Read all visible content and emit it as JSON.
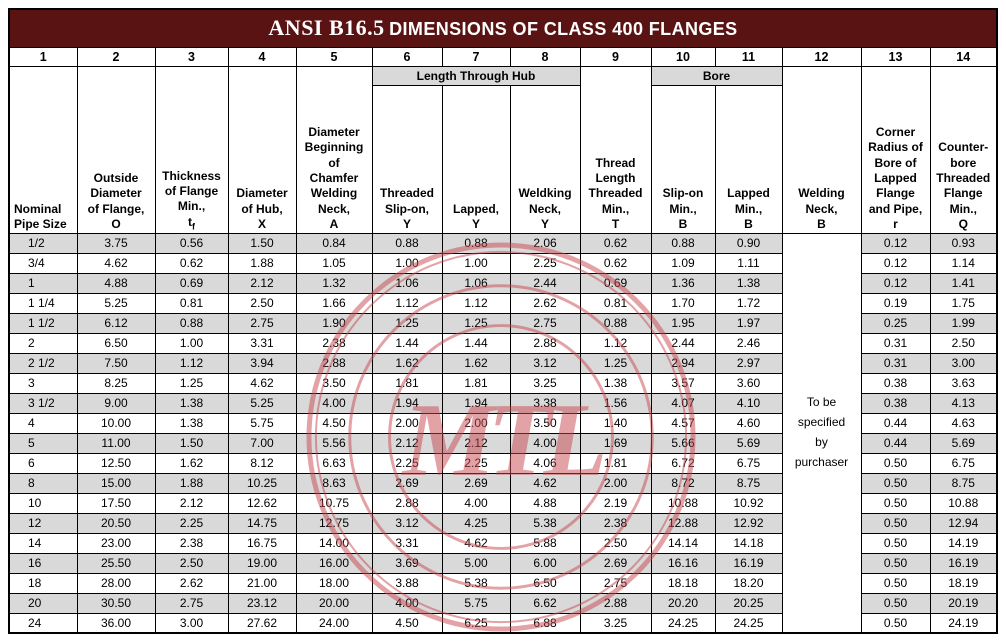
{
  "title": {
    "prefix": "ANSI B16.5",
    "rest": "DIMENSIONS OF CLASS 400 FLANGES"
  },
  "watermark": {
    "monogram": "MTL",
    "color": "#c84a50"
  },
  "table": {
    "column_numbers": [
      "1",
      "2",
      "3",
      "4",
      "5",
      "6",
      "7",
      "8",
      "9",
      "10",
      "11",
      "12",
      "13",
      "14"
    ],
    "group_headers": {
      "length_through_hub": "Length Through Hub",
      "bore": "Bore"
    },
    "headers": [
      "Nominal\nPipe Size",
      "Outside\nDiameter\nof Flange,\nO",
      "Thickness\nof Flange\nMin.,\nt_f",
      "Diameter\nof Hub,\nX",
      "Diameter\nBeginning\nof\nChamfer\nWelding\nNeck,\nA",
      "Threaded\nSlip-on,\nY",
      "Lapped,\nY",
      "Weldking\nNeck,\nY",
      "Thread\nLength\nThreaded\nMin.,\nT",
      "Slip-on\nMin.,\nB",
      "Lapped\nMin.,\nB",
      "Welding\nNeck,\nB",
      "Corner\nRadius of\nBore of\nLapped\nFlange\nand Pipe,\nr",
      "Counter-\nbore\nThreaded\nFlange\nMin.,\nQ"
    ],
    "welding_neck_note": "To be\nspecified\nby\npurchaser",
    "rows": [
      {
        "size": "1/2",
        "values": [
          "3.75",
          "0.56",
          "1.50",
          "0.84",
          "0.88",
          "0.88",
          "2.06",
          "0.62",
          "0.88",
          "0.90",
          "0.12",
          "0.93"
        ]
      },
      {
        "size": "3/4",
        "values": [
          "4.62",
          "0.62",
          "1.88",
          "1.05",
          "1.00",
          "1.00",
          "2.25",
          "0.62",
          "1.09",
          "1.11",
          "0.12",
          "1.14"
        ]
      },
      {
        "size": "1",
        "values": [
          "4.88",
          "0.69",
          "2.12",
          "1.32",
          "1.06",
          "1.06",
          "2.44",
          "0.69",
          "1.36",
          "1.38",
          "0.12",
          "1.41"
        ]
      },
      {
        "size": "1 1/4",
        "values": [
          "5.25",
          "0.81",
          "2.50",
          "1.66",
          "1.12",
          "1.12",
          "2.62",
          "0.81",
          "1.70",
          "1.72",
          "0.19",
          "1.75"
        ]
      },
      {
        "size": "1 1/2",
        "values": [
          "6.12",
          "0.88",
          "2.75",
          "1.90",
          "1.25",
          "1.25",
          "2.75",
          "0.88",
          "1.95",
          "1.97",
          "0.25",
          "1.99"
        ]
      },
      {
        "size": "2",
        "values": [
          "6.50",
          "1.00",
          "3.31",
          "2.38",
          "1.44",
          "1.44",
          "2.88",
          "1.12",
          "2.44",
          "2.46",
          "0.31",
          "2.50"
        ]
      },
      {
        "size": "2 1/2",
        "values": [
          "7.50",
          "1.12",
          "3.94",
          "2.88",
          "1.62",
          "1.62",
          "3.12",
          "1.25",
          "2.94",
          "2.97",
          "0.31",
          "3.00"
        ]
      },
      {
        "size": "3",
        "values": [
          "8.25",
          "1.25",
          "4.62",
          "3.50",
          "1.81",
          "1.81",
          "3.25",
          "1.38",
          "3.57",
          "3.60",
          "0.38",
          "3.63"
        ]
      },
      {
        "size": "3 1/2",
        "values": [
          "9.00",
          "1.38",
          "5.25",
          "4.00",
          "1.94",
          "1.94",
          "3.38",
          "1.56",
          "4.07",
          "4.10",
          "0.38",
          "4.13"
        ]
      },
      {
        "size": "4",
        "values": [
          "10.00",
          "1.38",
          "5.75",
          "4.50",
          "2.00",
          "2.00",
          "3.50",
          "1.40",
          "4.57",
          "4.60",
          "0.44",
          "4.63"
        ]
      },
      {
        "size": "5",
        "values": [
          "11.00",
          "1.50",
          "7.00",
          "5.56",
          "2.12",
          "2.12",
          "4.00",
          "1.69",
          "5.66",
          "5.69",
          "0.44",
          "5.69"
        ]
      },
      {
        "size": "6",
        "values": [
          "12.50",
          "1.62",
          "8.12",
          "6.63",
          "2.25",
          "2.25",
          "4.06",
          "1.81",
          "6.72",
          "6.75",
          "0.50",
          "6.75"
        ]
      },
      {
        "size": "8",
        "values": [
          "15.00",
          "1.88",
          "10.25",
          "8.63",
          "2.69",
          "2.69",
          "4.62",
          "2.00",
          "8.72",
          "8.75",
          "0.50",
          "8.75"
        ]
      },
      {
        "size": "10",
        "values": [
          "17.50",
          "2.12",
          "12.62",
          "10.75",
          "2.88",
          "4.00",
          "4.88",
          "2.19",
          "10.88",
          "10.92",
          "0.50",
          "10.88"
        ]
      },
      {
        "size": "12",
        "values": [
          "20.50",
          "2.25",
          "14.75",
          "12.75",
          "3.12",
          "4.25",
          "5.38",
          "2.38",
          "12.88",
          "12.92",
          "0.50",
          "12.94"
        ]
      },
      {
        "size": "14",
        "values": [
          "23.00",
          "2.38",
          "16.75",
          "14.00",
          "3.31",
          "4.62",
          "5.88",
          "2.50",
          "14.14",
          "14.18",
          "0.50",
          "14.19"
        ]
      },
      {
        "size": "16",
        "values": [
          "25.50",
          "2.50",
          "19.00",
          "16.00",
          "3.69",
          "5.00",
          "6.00",
          "2.69",
          "16.16",
          "16.19",
          "0.50",
          "16.19"
        ]
      },
      {
        "size": "18",
        "values": [
          "28.00",
          "2.62",
          "21.00",
          "18.00",
          "3.88",
          "5.38",
          "6.50",
          "2.75",
          "18.18",
          "18.20",
          "0.50",
          "18.19"
        ]
      },
      {
        "size": "20",
        "values": [
          "30.50",
          "2.75",
          "23.12",
          "20.00",
          "4.00",
          "5.75",
          "6.62",
          "2.88",
          "20.20",
          "20.25",
          "0.50",
          "20.19"
        ]
      },
      {
        "size": "24",
        "values": [
          "36.00",
          "3.00",
          "27.62",
          "24.00",
          "4.50",
          "6.25",
          "6.88",
          "3.25",
          "24.25",
          "24.25",
          "0.50",
          "24.19"
        ]
      }
    ]
  }
}
